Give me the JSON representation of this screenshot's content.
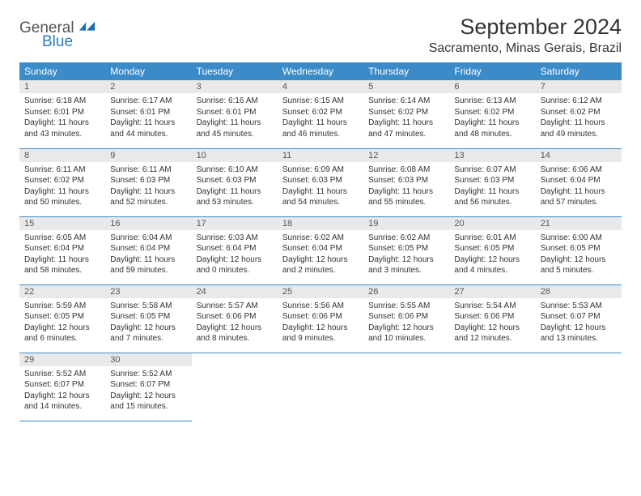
{
  "logo": {
    "text1": "General",
    "text2": "Blue",
    "color_general": "#555555",
    "color_blue": "#2b7bbf",
    "icon_fill": "#1f6fb0"
  },
  "title": "September 2024",
  "location": "Sacramento, Minas Gerais, Brazil",
  "header_bg": "#3b8bc9",
  "header_fg": "#ffffff",
  "daynum_bg": "#e9e9e9",
  "border_color": "#3b8bc9",
  "text_color": "#333333",
  "font_size_title": 27,
  "font_size_location": 16,
  "font_size_header": 12,
  "font_size_cell": 10,
  "weekdays": [
    "Sunday",
    "Monday",
    "Tuesday",
    "Wednesday",
    "Thursday",
    "Friday",
    "Saturday"
  ],
  "days": [
    {
      "n": "1",
      "sr": "6:18 AM",
      "ss": "6:01 PM",
      "dl": "11 hours and 43 minutes."
    },
    {
      "n": "2",
      "sr": "6:17 AM",
      "ss": "6:01 PM",
      "dl": "11 hours and 44 minutes."
    },
    {
      "n": "3",
      "sr": "6:16 AM",
      "ss": "6:01 PM",
      "dl": "11 hours and 45 minutes."
    },
    {
      "n": "4",
      "sr": "6:15 AM",
      "ss": "6:02 PM",
      "dl": "11 hours and 46 minutes."
    },
    {
      "n": "5",
      "sr": "6:14 AM",
      "ss": "6:02 PM",
      "dl": "11 hours and 47 minutes."
    },
    {
      "n": "6",
      "sr": "6:13 AM",
      "ss": "6:02 PM",
      "dl": "11 hours and 48 minutes."
    },
    {
      "n": "7",
      "sr": "6:12 AM",
      "ss": "6:02 PM",
      "dl": "11 hours and 49 minutes."
    },
    {
      "n": "8",
      "sr": "6:11 AM",
      "ss": "6:02 PM",
      "dl": "11 hours and 50 minutes."
    },
    {
      "n": "9",
      "sr": "6:11 AM",
      "ss": "6:03 PM",
      "dl": "11 hours and 52 minutes."
    },
    {
      "n": "10",
      "sr": "6:10 AM",
      "ss": "6:03 PM",
      "dl": "11 hours and 53 minutes."
    },
    {
      "n": "11",
      "sr": "6:09 AM",
      "ss": "6:03 PM",
      "dl": "11 hours and 54 minutes."
    },
    {
      "n": "12",
      "sr": "6:08 AM",
      "ss": "6:03 PM",
      "dl": "11 hours and 55 minutes."
    },
    {
      "n": "13",
      "sr": "6:07 AM",
      "ss": "6:03 PM",
      "dl": "11 hours and 56 minutes."
    },
    {
      "n": "14",
      "sr": "6:06 AM",
      "ss": "6:04 PM",
      "dl": "11 hours and 57 minutes."
    },
    {
      "n": "15",
      "sr": "6:05 AM",
      "ss": "6:04 PM",
      "dl": "11 hours and 58 minutes."
    },
    {
      "n": "16",
      "sr": "6:04 AM",
      "ss": "6:04 PM",
      "dl": "11 hours and 59 minutes."
    },
    {
      "n": "17",
      "sr": "6:03 AM",
      "ss": "6:04 PM",
      "dl": "12 hours and 0 minutes."
    },
    {
      "n": "18",
      "sr": "6:02 AM",
      "ss": "6:04 PM",
      "dl": "12 hours and 2 minutes."
    },
    {
      "n": "19",
      "sr": "6:02 AM",
      "ss": "6:05 PM",
      "dl": "12 hours and 3 minutes."
    },
    {
      "n": "20",
      "sr": "6:01 AM",
      "ss": "6:05 PM",
      "dl": "12 hours and 4 minutes."
    },
    {
      "n": "21",
      "sr": "6:00 AM",
      "ss": "6:05 PM",
      "dl": "12 hours and 5 minutes."
    },
    {
      "n": "22",
      "sr": "5:59 AM",
      "ss": "6:05 PM",
      "dl": "12 hours and 6 minutes."
    },
    {
      "n": "23",
      "sr": "5:58 AM",
      "ss": "6:05 PM",
      "dl": "12 hours and 7 minutes."
    },
    {
      "n": "24",
      "sr": "5:57 AM",
      "ss": "6:06 PM",
      "dl": "12 hours and 8 minutes."
    },
    {
      "n": "25",
      "sr": "5:56 AM",
      "ss": "6:06 PM",
      "dl": "12 hours and 9 minutes."
    },
    {
      "n": "26",
      "sr": "5:55 AM",
      "ss": "6:06 PM",
      "dl": "12 hours and 10 minutes."
    },
    {
      "n": "27",
      "sr": "5:54 AM",
      "ss": "6:06 PM",
      "dl": "12 hours and 12 minutes."
    },
    {
      "n": "28",
      "sr": "5:53 AM",
      "ss": "6:07 PM",
      "dl": "12 hours and 13 minutes."
    },
    {
      "n": "29",
      "sr": "5:52 AM",
      "ss": "6:07 PM",
      "dl": "12 hours and 14 minutes."
    },
    {
      "n": "30",
      "sr": "5:52 AM",
      "ss": "6:07 PM",
      "dl": "12 hours and 15 minutes."
    }
  ],
  "labels": {
    "sunrise": "Sunrise: ",
    "sunset": "Sunset: ",
    "daylight": "Daylight: "
  }
}
